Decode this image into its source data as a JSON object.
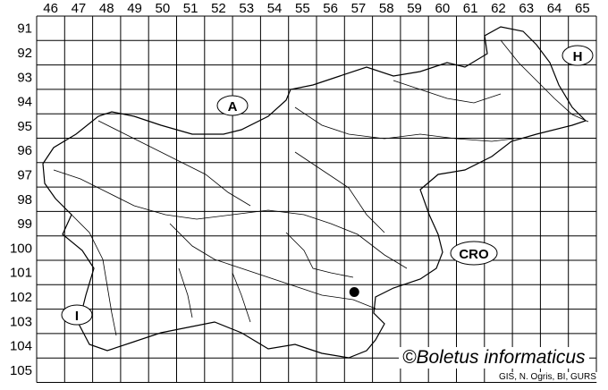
{
  "map": {
    "column_labels": [
      "46",
      "47",
      "48",
      "49",
      "50",
      "51",
      "52",
      "53",
      "54",
      "55",
      "56",
      "57",
      "58",
      "59",
      "60",
      "61",
      "62",
      "63",
      "64",
      "65"
    ],
    "row_labels": [
      "91",
      "92",
      "93",
      "94",
      "95",
      "96",
      "97",
      "98",
      "99",
      "100",
      "101",
      "102",
      "103",
      "104",
      "105"
    ],
    "country_labels": [
      {
        "code": "A"
      },
      {
        "code": "H"
      },
      {
        "code": "CRO"
      },
      {
        "code": "I"
      }
    ],
    "records": [
      {
        "column": "57",
        "row": "102"
      }
    ],
    "colors": {
      "lines": "#000000",
      "background": "#ffffff",
      "record_dot": "#000000"
    }
  },
  "credit": "©Boletus informaticus",
  "source": "GIS, N. Ogris, BI, GURS"
}
